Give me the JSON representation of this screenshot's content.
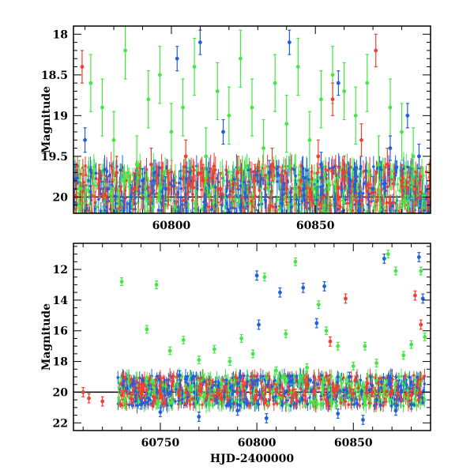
{
  "chart_data": [
    {
      "type": "scatter",
      "title": "",
      "xlabel": "",
      "ylabel": "Magnitude",
      "xlim": [
        60766,
        60890
      ],
      "ylim": [
        20.2,
        17.9
      ],
      "y_inverted": true,
      "grid": false,
      "xticks": [
        60800,
        60850
      ],
      "xtick_labels": [
        "60800",
        "60850"
      ],
      "yticks": [
        18,
        18.5,
        19,
        19.5,
        20
      ],
      "ytick_labels": [
        "18",
        "18.5",
        "19",
        "19.5",
        "20"
      ],
      "reference_line": 20.0,
      "series": [
        {
          "color": "#44e744",
          "err": 0.35,
          "points": [
            [
              60768,
              19.9
            ],
            [
              60772,
              18.6
            ],
            [
              60776,
              18.9
            ],
            [
              60780,
              19.3
            ],
            [
              60784,
              18.2
            ],
            [
              60788,
              19.6
            ],
            [
              60792,
              18.8
            ],
            [
              60796,
              18.5
            ],
            [
              60800,
              19.2
            ],
            [
              60804,
              18.9
            ],
            [
              60808,
              18.4
            ],
            [
              60812,
              19.5
            ],
            [
              60816,
              18.7
            ],
            [
              60820,
              19.0
            ],
            [
              60824,
              18.3
            ],
            [
              60828,
              18.9
            ],
            [
              60832,
              19.4
            ],
            [
              60836,
              18.6
            ],
            [
              60840,
              19.1
            ],
            [
              60844,
              18.4
            ],
            [
              60848,
              19.3
            ],
            [
              60852,
              18.8
            ],
            [
              60856,
              18.5
            ],
            [
              60860,
              18.7
            ],
            [
              60864,
              19.0
            ],
            [
              60868,
              18.6
            ],
            [
              60872,
              19.6
            ],
            [
              60876,
              18.9
            ],
            [
              60880,
              19.2
            ],
            [
              60884,
              19.5
            ]
          ]
        },
        {
          "color": "#1f5fe0",
          "err": 0.15,
          "points": [
            [
              60770,
              19.3
            ],
            [
              60778,
              19.9
            ],
            [
              60786,
              20.0
            ],
            [
              60790,
              19.8
            ],
            [
              60798,
              19.9
            ],
            [
              60802,
              18.3
            ],
            [
              60810,
              18.1
            ],
            [
              60818,
              19.2
            ],
            [
              60826,
              20.0
            ],
            [
              60834,
              19.7
            ],
            [
              60841,
              18.1
            ],
            [
              60846,
              19.9
            ],
            [
              60852,
              19.6
            ],
            [
              60858,
              18.6
            ],
            [
              60864,
              19.8
            ],
            [
              60870,
              19.9
            ],
            [
              60876,
              19.4
            ],
            [
              60882,
              19.0
            ],
            [
              60886,
              19.5
            ]
          ]
        },
        {
          "color": "#f23f2f",
          "err": 0.2,
          "points": [
            [
              60767,
              20.0
            ],
            [
              60769,
              18.4
            ],
            [
              60775,
              19.8
            ],
            [
              60781,
              19.7
            ],
            [
              60787,
              19.9
            ],
            [
              60793,
              19.6
            ],
            [
              60799,
              19.9
            ],
            [
              60805,
              19.5
            ],
            [
              60811,
              19.8
            ],
            [
              60817,
              19.9
            ],
            [
              60823,
              19.7
            ],
            [
              60829,
              19.8
            ],
            [
              60835,
              19.6
            ],
            [
              60840,
              19.9
            ],
            [
              60845,
              19.8
            ],
            [
              60851,
              19.5
            ],
            [
              60856,
              18.8
            ],
            [
              60860,
              19.7
            ],
            [
              60866,
              19.3
            ],
            [
              60871,
              18.2
            ],
            [
              60875,
              19.6
            ],
            [
              60880,
              19.8
            ],
            [
              60885,
              19.9
            ]
          ]
        }
      ]
    },
    {
      "type": "scatter",
      "title": "",
      "xlabel": "HJD-2400000",
      "ylabel": "Magnitude",
      "xlim": [
        60705,
        60890
      ],
      "ylim": [
        22.5,
        10.3
      ],
      "y_inverted": true,
      "grid": false,
      "xticks": [
        60750,
        60800,
        60850
      ],
      "xtick_labels": [
        "60750",
        "60800",
        "60850"
      ],
      "yticks": [
        12,
        14,
        16,
        18,
        20,
        22
      ],
      "ytick_labels": [
        "12",
        "14",
        "16",
        "18",
        "20",
        "22"
      ],
      "reference_line": 20.0,
      "series": [
        {
          "color": "#44e744",
          "err": 0.25,
          "points": [
            [
              60730,
              12.8
            ],
            [
              60743,
              15.9
            ],
            [
              60748,
              13.0
            ],
            [
              60755,
              17.3
            ],
            [
              60762,
              16.6
            ],
            [
              60770,
              17.9
            ],
            [
              60778,
              17.2
            ],
            [
              60786,
              18.0
            ],
            [
              60792,
              16.5
            ],
            [
              60798,
              17.5
            ],
            [
              60804,
              12.5
            ],
            [
              60810,
              18.6
            ],
            [
              60815,
              16.2
            ],
            [
              60820,
              11.5
            ],
            [
              60826,
              18.4
            ],
            [
              60832,
              14.3
            ],
            [
              60836,
              16.0
            ],
            [
              60842,
              17.0
            ],
            [
              60850,
              18.3
            ],
            [
              60856,
              17.0
            ],
            [
              60862,
              18.1
            ],
            [
              60868,
              11.0
            ],
            [
              60872,
              12.1
            ],
            [
              60876,
              17.6
            ],
            [
              60880,
              16.9
            ],
            [
              60885,
              12.1
            ],
            [
              60887,
              16.4
            ]
          ]
        },
        {
          "color": "#1f5fe0",
          "err": 0.3,
          "points": [
            [
              60740,
              20.8
            ],
            [
              60750,
              21.3
            ],
            [
              60760,
              18.9
            ],
            [
              60770,
              21.6
            ],
            [
              60780,
              19.6
            ],
            [
              60790,
              21.2
            ],
            [
              60800,
              12.4
            ],
            [
              60801,
              15.6
            ],
            [
              60805,
              21.7
            ],
            [
              60812,
              13.5
            ],
            [
              60818,
              19.3
            ],
            [
              60824,
              13.2
            ],
            [
              60831,
              15.5
            ],
            [
              60835,
              13.1
            ],
            [
              60842,
              21.4
            ],
            [
              60848,
              19.0
            ],
            [
              60855,
              21.8
            ],
            [
              60862,
              20.5
            ],
            [
              60866,
              11.3
            ],
            [
              60872,
              21.2
            ],
            [
              60880,
              20.8
            ],
            [
              60884,
              11.2
            ],
            [
              60886,
              13.9
            ]
          ]
        },
        {
          "color": "#f23f2f",
          "err": 0.3,
          "points": [
            [
              60710,
              20.0
            ],
            [
              60713,
              20.4
            ],
            [
              60720,
              20.6
            ],
            [
              60730,
              20.2
            ],
            [
              60740,
              20.0
            ],
            [
              60750,
              20.1
            ],
            [
              60760,
              20.2
            ],
            [
              60770,
              19.9
            ],
            [
              60780,
              20.1
            ],
            [
              60790,
              20.0
            ],
            [
              60800,
              20.2
            ],
            [
              60810,
              19.8
            ],
            [
              60820,
              20.1
            ],
            [
              60830,
              19.9
            ],
            [
              60838,
              16.7
            ],
            [
              60840,
              20.0
            ],
            [
              60846,
              13.9
            ],
            [
              60850,
              20.1
            ],
            [
              60860,
              20.0
            ],
            [
              60870,
              19.9
            ],
            [
              60880,
              20.2
            ],
            [
              60882,
              13.7
            ],
            [
              60885,
              15.6
            ]
          ]
        }
      ]
    }
  ]
}
